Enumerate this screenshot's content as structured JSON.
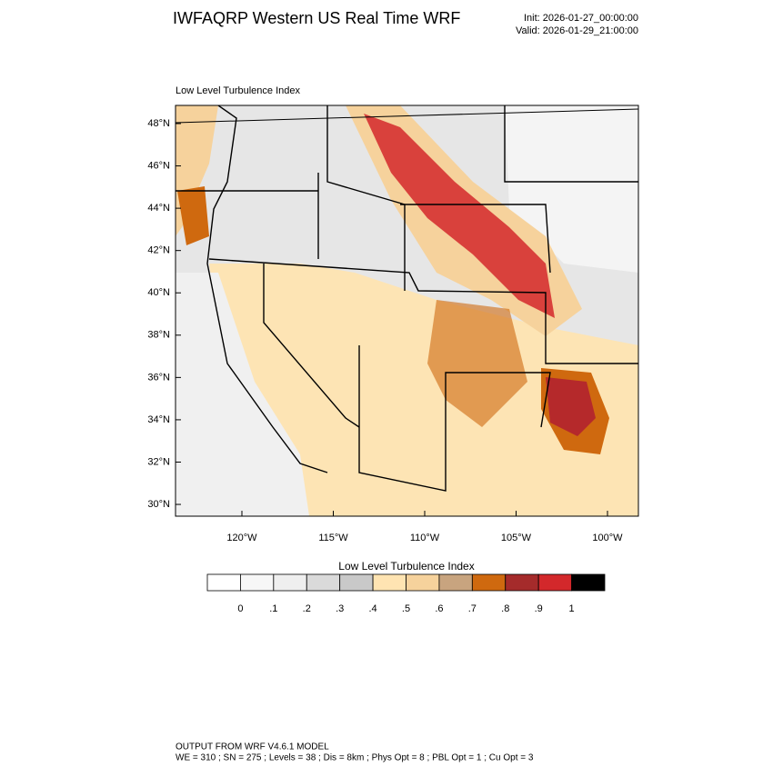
{
  "header": {
    "title": "IWFAQRP Western US Real Time WRF",
    "init": "Init: 2026-01-27_00:00:00",
    "valid": "Valid: 2026-01-29_21:00:00"
  },
  "map": {
    "subtitle": "Low Level Turbulence Index",
    "lat_ticks": [
      {
        "value": 48,
        "label": "48°N"
      },
      {
        "value": 46,
        "label": "46°N"
      },
      {
        "value": 44,
        "label": "44°N"
      },
      {
        "value": 42,
        "label": "42°N"
      },
      {
        "value": 40,
        "label": "40°N"
      },
      {
        "value": 38,
        "label": "38°N"
      },
      {
        "value": 36,
        "label": "36°N"
      },
      {
        "value": 34,
        "label": "34°N"
      },
      {
        "value": 32,
        "label": "32°N"
      },
      {
        "value": 30,
        "label": "30°N"
      }
    ],
    "lon_ticks": [
      {
        "value": -120,
        "label": "120°W"
      },
      {
        "value": -115,
        "label": "115°W"
      },
      {
        "value": -110,
        "label": "110°W"
      },
      {
        "value": -105,
        "label": "105°W"
      },
      {
        "value": -100,
        "label": "100°W"
      }
    ]
  },
  "colorbar": {
    "title": "Low Level Turbulence Index",
    "colors": [
      "#ffffff",
      "#f7f7f7",
      "#efefef",
      "#dadada",
      "#c9c9c9",
      "#ffe4b2",
      "#f6d29c",
      "#c8a47f",
      "#cf690f",
      "#a52b2b",
      "#d3282b",
      "#000000"
    ],
    "ticks": [
      {
        "value": 0,
        "label": "0"
      },
      {
        "value": 0.1,
        "label": ".1"
      },
      {
        "value": 0.2,
        "label": ".2"
      },
      {
        "value": 0.3,
        "label": ".3"
      },
      {
        "value": 0.4,
        "label": ".4"
      },
      {
        "value": 0.5,
        "label": ".5"
      },
      {
        "value": 0.6,
        "label": ".6"
      },
      {
        "value": 0.7,
        "label": ".7"
      },
      {
        "value": 0.8,
        "label": ".8"
      },
      {
        "value": 0.9,
        "label": ".9"
      },
      {
        "value": 1,
        "label": "1"
      }
    ]
  },
  "footer": {
    "line1": "OUTPUT FROM WRF V4.6.1 MODEL",
    "line2": "WE = 310 ; SN = 275 ; Levels = 38 ; Dis = 8km ; Phys Opt = 8 ; PBL Opt = 1 ; Cu Opt = 3"
  }
}
